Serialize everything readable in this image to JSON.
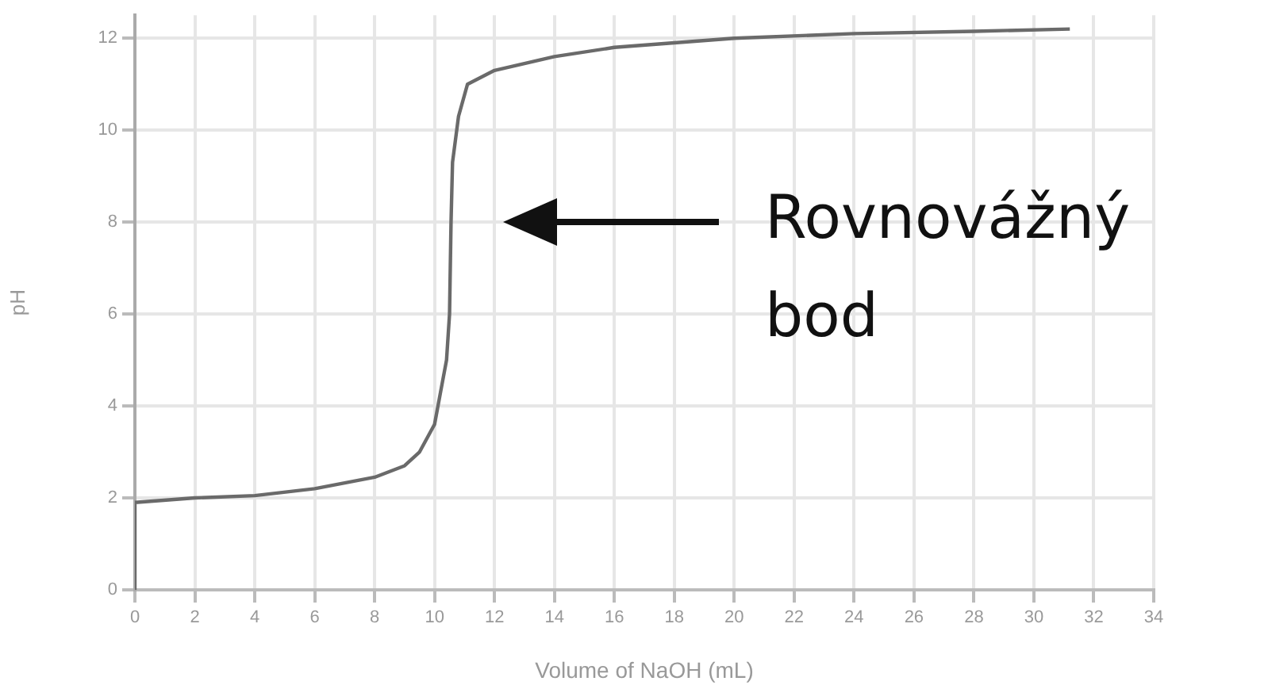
{
  "chart_data": {
    "type": "line",
    "xlabel": "Volume of NaOH (mL)",
    "ylabel": "pH",
    "x": [
      0,
      0,
      2,
      4,
      6,
      8,
      9,
      9.5,
      10,
      10.2,
      10.4,
      10.5,
      10.55,
      10.6,
      10.8,
      11.1,
      12,
      14,
      16,
      18,
      20,
      24,
      28,
      31.2
    ],
    "series": [
      {
        "color": "#6a6a6a",
        "values": [
          0,
          1.9,
          2.0,
          2.05,
          2.2,
          2.45,
          2.7,
          3.0,
          3.6,
          4.3,
          5.0,
          6,
          8,
          9.3,
          10.3,
          11.0,
          11.3,
          11.6,
          11.8,
          11.9,
          12.0,
          12.1,
          12.15,
          12.2
        ]
      }
    ],
    "xlim": [
      0,
      34
    ],
    "xticks": [
      0,
      2,
      4,
      6,
      8,
      10,
      12,
      14,
      16,
      18,
      20,
      22,
      24,
      26,
      28,
      30,
      32,
      34
    ],
    "ylim": [
      0,
      12.5
    ],
    "yticks": [
      0,
      2,
      4,
      6,
      8,
      10,
      12
    ],
    "grid": true,
    "legend": false,
    "marker": "none",
    "line_style": "solid",
    "annotations": [
      "Rovnovážný bod"
    ]
  }
}
